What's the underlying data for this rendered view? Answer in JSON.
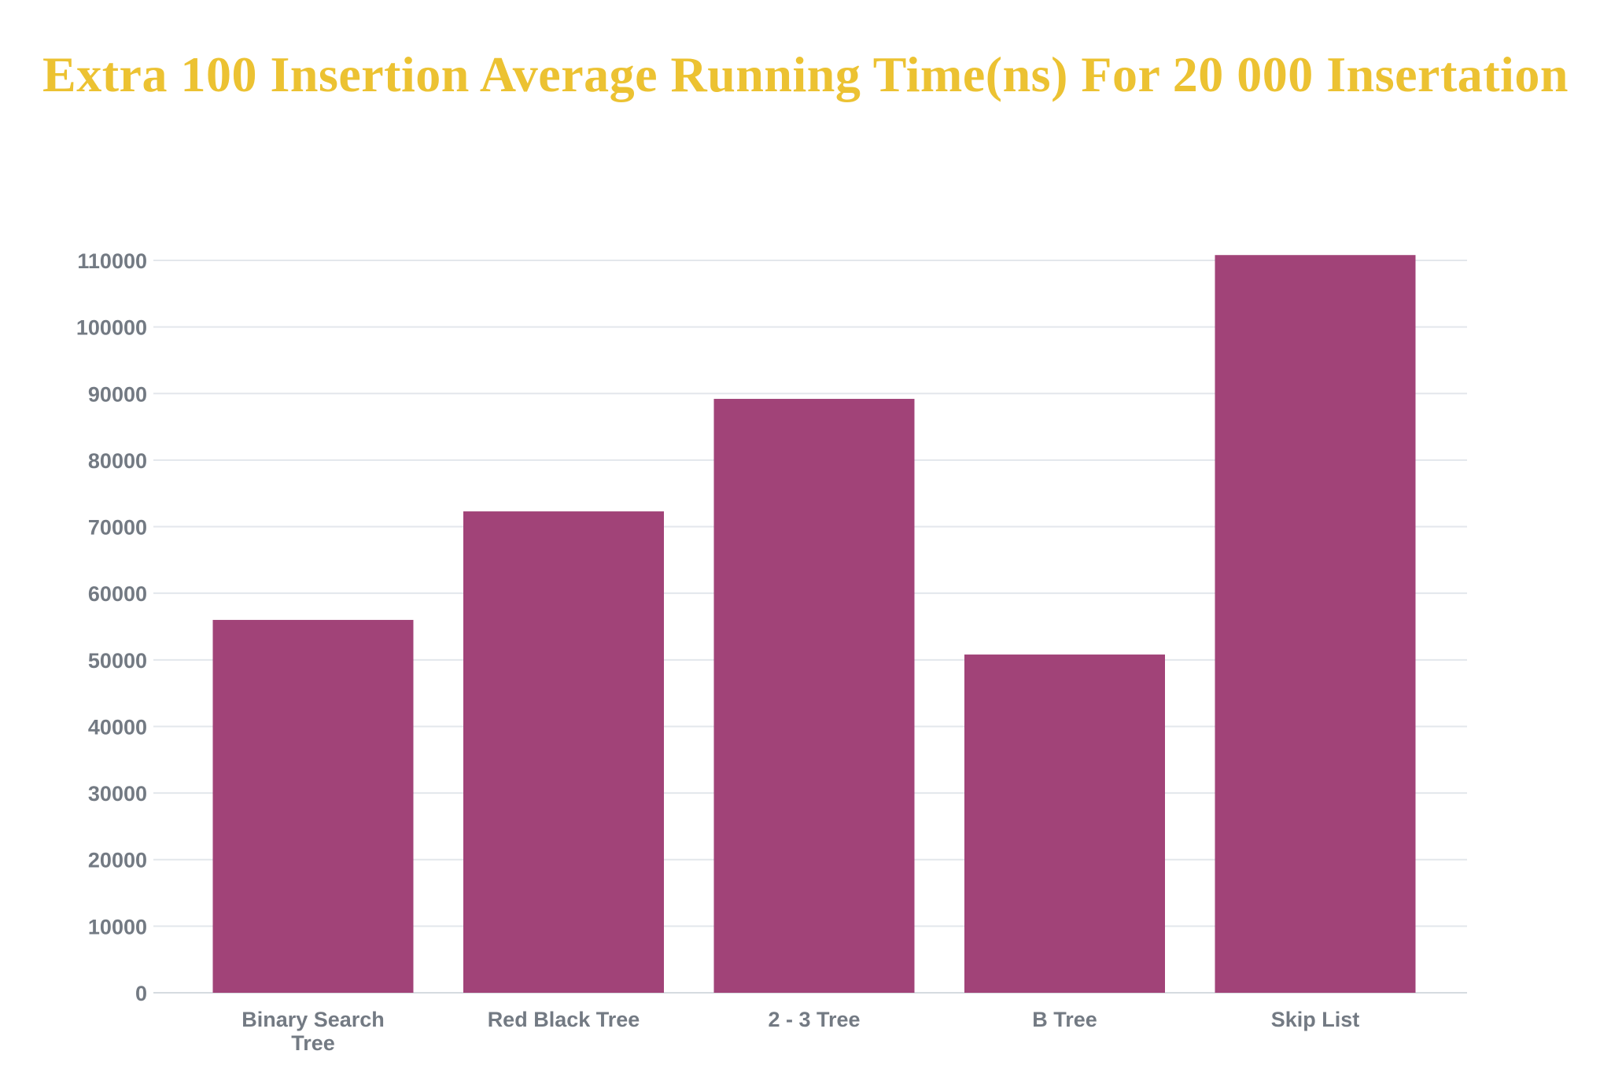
{
  "colors": {
    "title": "#ecc232",
    "bar": "#a14378",
    "grid": "#e3e7ec",
    "axis": "#d6dbe0",
    "tick_text": "#737a83"
  },
  "chart_data": {
    "type": "bar",
    "title": "Extra 100 Insertion Average Running Time(ns) For 20 000 Insertation",
    "categories": [
      [
        "Binary Search",
        "Tree"
      ],
      [
        "Red Black Tree"
      ],
      [
        "2 - 3 Tree"
      ],
      [
        "B Tree"
      ],
      [
        "Skip List"
      ]
    ],
    "values": [
      56000,
      72300,
      89200,
      50800,
      110800
    ],
    "xlabel": "",
    "ylabel": "",
    "ylim": [
      0,
      110000
    ],
    "yticks": [
      0,
      10000,
      20000,
      30000,
      40000,
      50000,
      60000,
      70000,
      80000,
      90000,
      100000,
      110000
    ],
    "grid": true,
    "legend": "none"
  }
}
